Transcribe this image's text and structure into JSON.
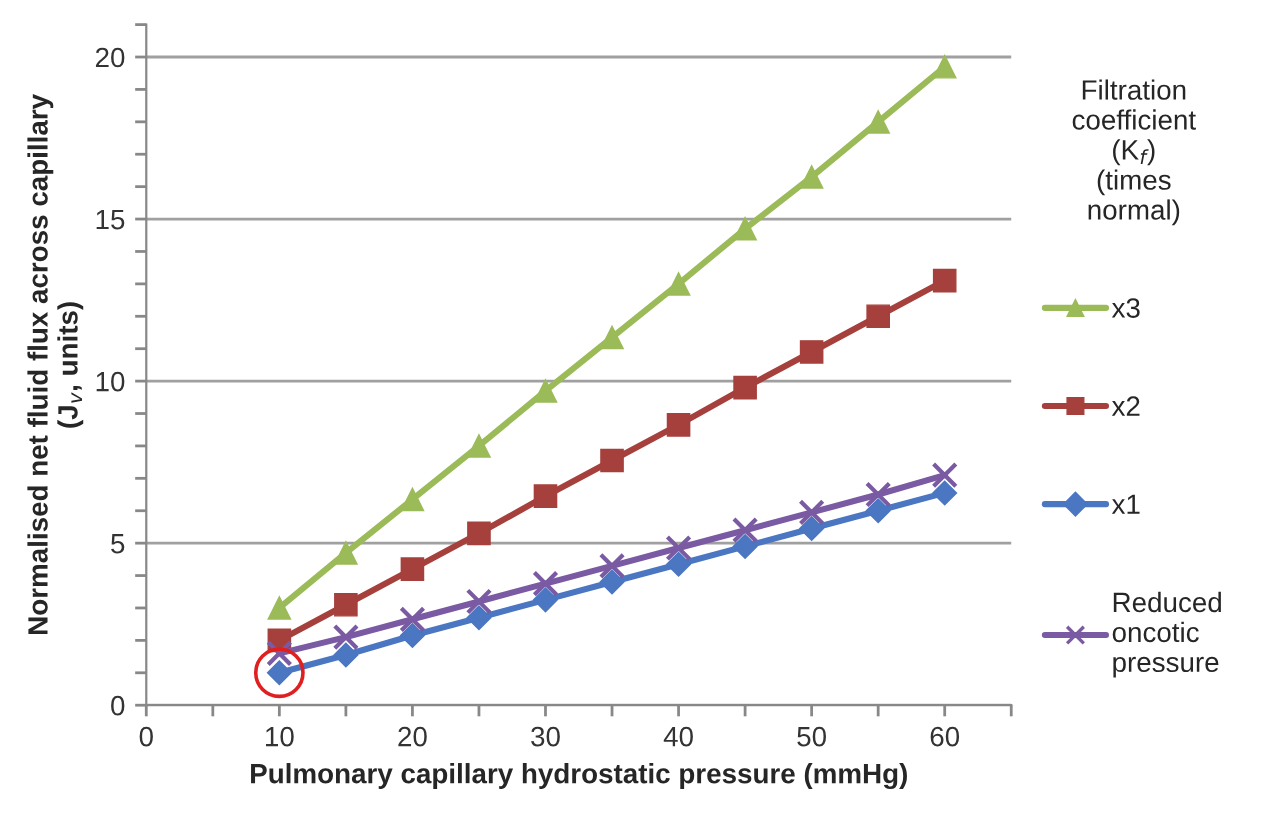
{
  "chart_data": {
    "type": "line",
    "xlabel": "Pulmonary capillary hydrostatic pressure (mmHg)",
    "ylabel": "Normalised net fluid flux across capillary\n(J$_{v}$, units)",
    "legend_title": "Filtration\ncoefficient\n(K$_{f}$)\n(times\nnormal)",
    "x": [
      10,
      15,
      20,
      25,
      30,
      35,
      40,
      45,
      50,
      55,
      60
    ],
    "series": [
      {
        "name": "x3",
        "color": "#9bbb59",
        "marker": "triangle",
        "values": [
          3.0,
          4.7,
          6.35,
          8.0,
          9.7,
          11.35,
          13.0,
          14.7,
          16.3,
          18.0,
          19.7
        ]
      },
      {
        "name": "x2",
        "color": "#a5403d",
        "marker": "square",
        "values": [
          2.0,
          3.1,
          4.2,
          5.3,
          6.45,
          7.55,
          8.65,
          9.8,
          10.9,
          12.0,
          13.1
        ]
      },
      {
        "name": "x1",
        "color": "#4a76c2",
        "marker": "diamond",
        "values": [
          1.0,
          1.55,
          2.15,
          2.7,
          3.25,
          3.8,
          4.35,
          4.9,
          5.45,
          6.0,
          6.55
        ]
      },
      {
        "name": "Reduced\noncotic\npressure",
        "color": "#7a5aa2",
        "marker": "cross",
        "values": [
          1.6,
          2.1,
          2.65,
          3.2,
          3.75,
          4.3,
          4.85,
          5.4,
          5.95,
          6.5,
          7.1
        ]
      }
    ],
    "xlim": [
      0,
      65
    ],
    "xticks": [
      0,
      {
        "value": 5,
        "label": null
      },
      10,
      {
        "value": 15,
        "label": null
      },
      20,
      {
        "value": 25,
        "label": null
      },
      30,
      {
        "value": 35,
        "label": null
      },
      40,
      {
        "value": 45,
        "label": null
      },
      50,
      {
        "value": 55,
        "label": null
      },
      60,
      {
        "value": 65,
        "label": null
      }
    ],
    "ylim": [
      0,
      21
    ],
    "yticks": [
      0,
      {
        "value": 1,
        "label": null
      },
      {
        "value": 2,
        "label": null
      },
      {
        "value": 3,
        "label": null
      },
      {
        "value": 4,
        "label": null
      },
      5,
      {
        "value": 6,
        "label": null
      },
      {
        "value": 7,
        "label": null
      },
      {
        "value": 8,
        "label": null
      },
      {
        "value": 9,
        "label": null
      },
      10,
      {
        "value": 11,
        "label": null
      },
      {
        "value": 12,
        "label": null
      },
      {
        "value": 13,
        "label": null
      },
      {
        "value": 14,
        "label": null
      },
      15,
      {
        "value": 16,
        "label": null
      },
      {
        "value": 17,
        "label": null
      },
      {
        "value": 18,
        "label": null
      },
      {
        "value": 19,
        "label": null
      },
      20,
      {
        "value": 21,
        "label": null
      }
    ],
    "grid": "y",
    "legend": "right",
    "line_style": "solid"
  }
}
